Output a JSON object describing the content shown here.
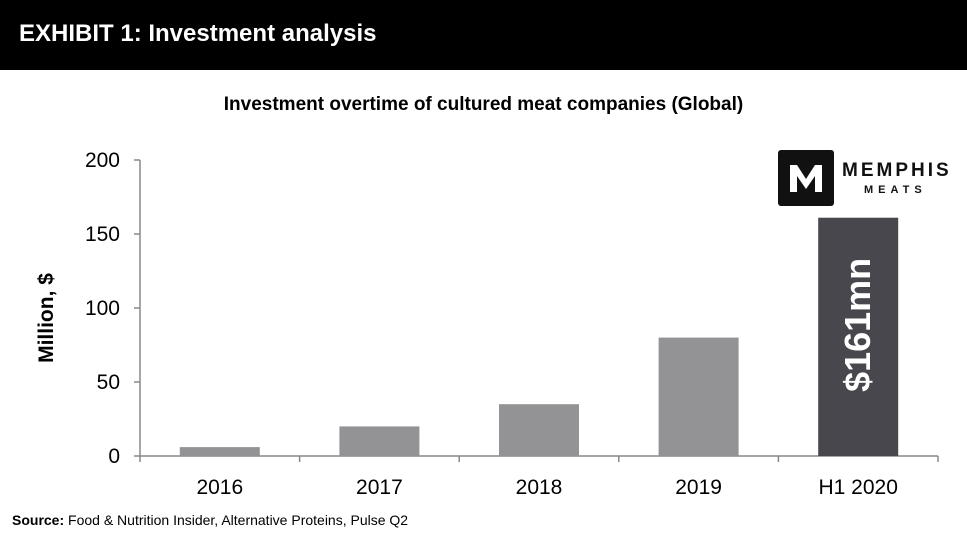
{
  "header": {
    "title": "EXHIBIT 1: Investment analysis"
  },
  "source": {
    "label": "Source:",
    "text": "Food & Nutrition Insider, Alternative Proteins, Pulse Q2"
  },
  "logo": {
    "line1": "MEMPHIS",
    "line2": "MEATS",
    "icon": "memphis-meats-m-icon"
  },
  "colors": {
    "bar": "#939295",
    "highlight_bar": "#48474d",
    "header": "#000000"
  },
  "chart_data": {
    "type": "bar",
    "title": "Investment overtime of cultured meat companies (Global)",
    "xlabel": "",
    "ylabel": "Million, $",
    "categories": [
      "2016",
      "2017",
      "2018",
      "2019",
      "H1 2020"
    ],
    "values": [
      6,
      20,
      35,
      80,
      161
    ],
    "ylim": [
      0,
      200
    ],
    "yticks": [
      0,
      50,
      100,
      150,
      200
    ],
    "grid": false,
    "highlight_index": 4,
    "annotations": [
      {
        "category": "H1 2020",
        "text": "$161mn"
      }
    ]
  }
}
